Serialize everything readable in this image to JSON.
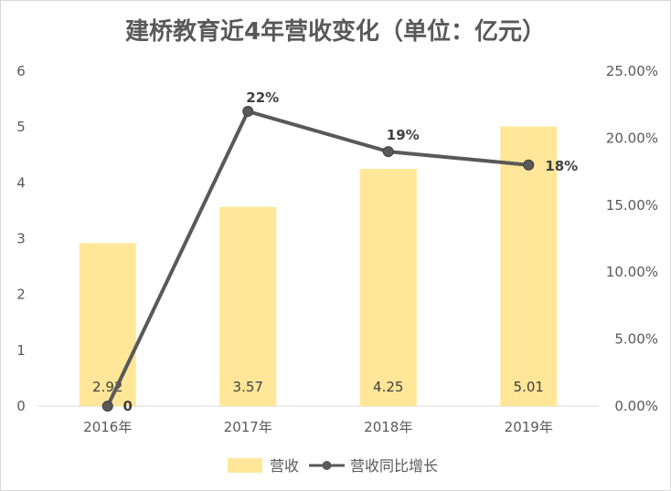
{
  "chart_data": {
    "type": "bar",
    "title": "建桥教育近4年营收变化（单位：亿元）",
    "categories": [
      "2016年",
      "2017年",
      "2018年",
      "2019年"
    ],
    "series": [
      {
        "name": "营收",
        "type": "bar",
        "axis": "left",
        "values": [
          2.92,
          3.57,
          4.25,
          5.01
        ],
        "labels": [
          "2.92",
          "3.57",
          "4.25",
          "5.01"
        ]
      },
      {
        "name": "营收同比增长",
        "type": "line",
        "axis": "right",
        "values": [
          0,
          22,
          19,
          18
        ],
        "labels": [
          "0",
          "22%",
          "19%",
          "18%"
        ]
      }
    ],
    "y_left": {
      "min": 0,
      "max": 6,
      "ticks": [
        "0",
        "1",
        "2",
        "3",
        "4",
        "5",
        "6"
      ]
    },
    "y_right": {
      "min": 0,
      "max": 25,
      "ticks": [
        "0.00%",
        "5.00%",
        "10.00%",
        "15.00%",
        "20.00%",
        "25.00%"
      ]
    },
    "grid": false,
    "legend_position": "bottom",
    "colors": {
      "bar": "#FFE699",
      "line": "#595959",
      "text": "#595959"
    }
  }
}
